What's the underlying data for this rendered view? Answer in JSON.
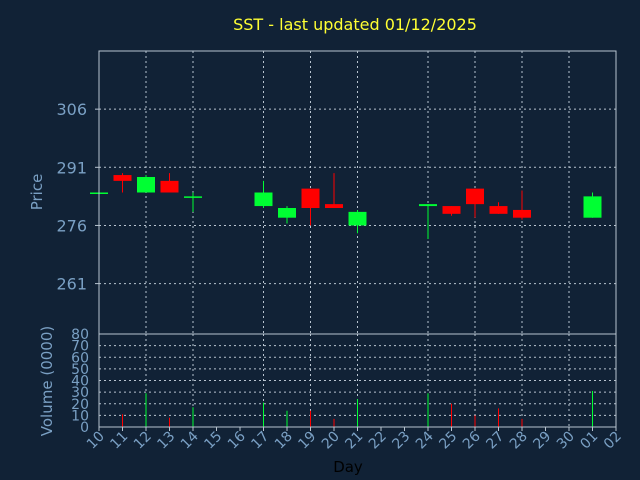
{
  "chart_data": [
    {
      "type": "candlestick",
      "title": "SST - last updated 01/12/2025",
      "ylabel": "Price",
      "ylim": [
        248,
        321
      ],
      "yticks": [
        261,
        276,
        291,
        306
      ],
      "x_tick_labels": [
        "10",
        "11",
        "12",
        "13",
        "14",
        "15",
        "16",
        "17",
        "18",
        "19",
        "20",
        "21",
        "22",
        "23",
        "24",
        "25",
        "26",
        "27",
        "28",
        "29",
        "30",
        "01",
        "02"
      ],
      "grid": true,
      "colors": {
        "up": "#00ff33",
        "down": "#ff0000",
        "background": "#112236",
        "title": "#ffff33",
        "axis_text": "#7aa0c4",
        "grid": "#b8c4d0"
      },
      "candles": [
        {
          "day": "10",
          "open": 284.5,
          "close": 284.5,
          "high": 284.5,
          "low": 284.5
        },
        {
          "day": "11",
          "open": 289.0,
          "close": 287.5,
          "high": 289.5,
          "low": 284.5
        },
        {
          "day": "12",
          "open": 284.5,
          "close": 288.5,
          "high": 289.0,
          "low": 284.5
        },
        {
          "day": "13",
          "open": 287.5,
          "close": 284.5,
          "high": 289.5,
          "low": 284.5
        },
        {
          "day": "14",
          "open": 283.5,
          "close": 283.5,
          "high": 284.5,
          "low": 279.5
        },
        {
          "day": "17",
          "open": 281.0,
          "close": 284.5,
          "high": 287.5,
          "low": 280.5
        },
        {
          "day": "18",
          "open": 278.0,
          "close": 280.5,
          "high": 281.0,
          "low": 276.5
        },
        {
          "day": "19",
          "open": 285.5,
          "close": 280.5,
          "high": 285.5,
          "low": 276.0
        },
        {
          "day": "20",
          "open": 281.5,
          "close": 280.5,
          "high": 289.5,
          "low": 280.5
        },
        {
          "day": "21",
          "open": 276.0,
          "close": 279.5,
          "high": 280.0,
          "low": 274.0
        },
        {
          "day": "24",
          "open": 281.0,
          "close": 281.5,
          "high": 281.5,
          "low": 272.5
        },
        {
          "day": "25",
          "open": 281.0,
          "close": 279.0,
          "high": 281.0,
          "low": 278.5
        },
        {
          "day": "26",
          "open": 285.5,
          "close": 281.5,
          "high": 285.5,
          "low": 278.0
        },
        {
          "day": "27",
          "open": 281.0,
          "close": 279.0,
          "high": 282.0,
          "low": 279.0
        },
        {
          "day": "28",
          "open": 280.0,
          "close": 278.0,
          "high": 285.0,
          "low": 277.5
        },
        {
          "day": "01",
          "open": 278.0,
          "close": 283.5,
          "high": 284.5,
          "low": 278.0
        }
      ]
    },
    {
      "type": "bar",
      "ylabel": "Volume (0000)",
      "xlabel": "Day",
      "ylim": [
        0,
        80
      ],
      "yticks": [
        0,
        10,
        20,
        30,
        40,
        50,
        60,
        70,
        80
      ],
      "bars": [
        {
          "day": "10",
          "value": 0,
          "color": "#00ff33"
        },
        {
          "day": "11",
          "value": 11,
          "color": "#ff0000"
        },
        {
          "day": "12",
          "value": 29,
          "color": "#00ff33"
        },
        {
          "day": "13",
          "value": 8,
          "color": "#ff0000"
        },
        {
          "day": "14",
          "value": 17,
          "color": "#00ff33"
        },
        {
          "day": "17",
          "value": 21,
          "color": "#00ff33"
        },
        {
          "day": "18",
          "value": 14,
          "color": "#00ff33"
        },
        {
          "day": "19",
          "value": 14,
          "color": "#ff0000"
        },
        {
          "day": "20",
          "value": 7,
          "color": "#ff0000"
        },
        {
          "day": "21",
          "value": 24,
          "color": "#00ff33"
        },
        {
          "day": "24",
          "value": 29,
          "color": "#00ff33"
        },
        {
          "day": "25",
          "value": 20,
          "color": "#ff0000"
        },
        {
          "day": "26",
          "value": 10,
          "color": "#ff0000"
        },
        {
          "day": "27",
          "value": 16,
          "color": "#ff0000"
        },
        {
          "day": "28",
          "value": 7,
          "color": "#ff0000"
        },
        {
          "day": "01",
          "value": 31,
          "color": "#00ff33"
        }
      ]
    }
  ]
}
